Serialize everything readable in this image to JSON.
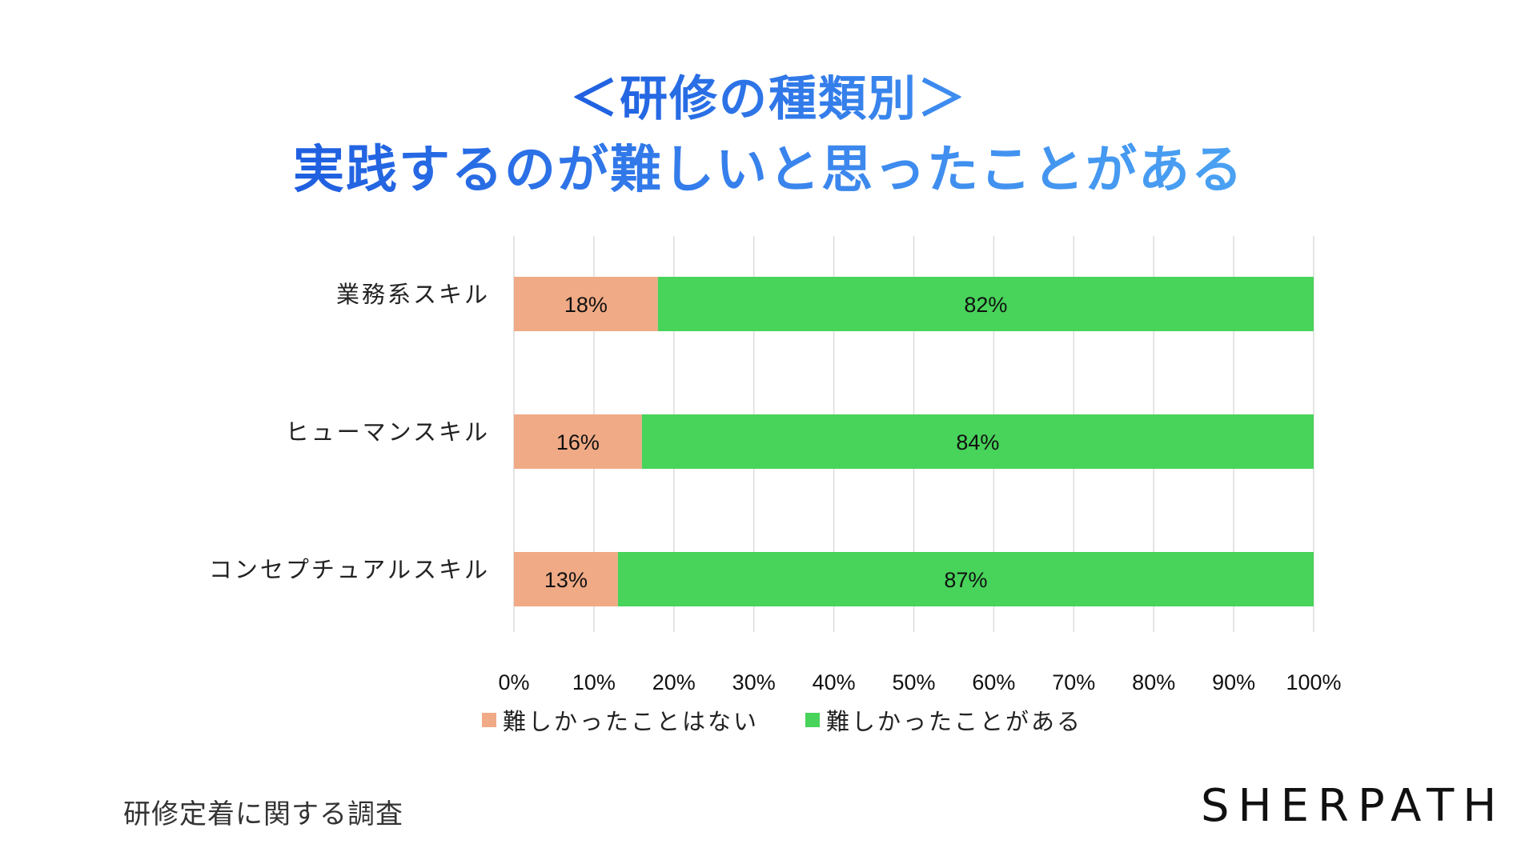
{
  "title": {
    "line1": "＜研修の種類別＞",
    "line2": "実践するのが難しいと思ったことがある"
  },
  "chart_data": {
    "type": "bar",
    "orientation": "horizontal",
    "stacked": true,
    "categories": [
      "業務系スキル",
      "ヒューマンスキル",
      "コンセプチュアルスキル"
    ],
    "series": [
      {
        "name": "難しかったことはない",
        "color": "#f0aa86",
        "values": [
          18,
          16,
          13
        ],
        "labels": [
          "18%",
          "16%",
          "13%"
        ]
      },
      {
        "name": "難しかったことがある",
        "color": "#48d35a",
        "values": [
          82,
          84,
          87
        ],
        "labels": [
          "82%",
          "84%",
          "87%"
        ]
      }
    ],
    "xlim": [
      0,
      100
    ],
    "xticks": [
      "0%",
      "10%",
      "20%",
      "30%",
      "40%",
      "50%",
      "60%",
      "70%",
      "80%",
      "90%",
      "100%"
    ],
    "grid": true,
    "legend_position": "bottom"
  },
  "footnote": "研修定着に関する調査",
  "logo": "SHERPATH"
}
